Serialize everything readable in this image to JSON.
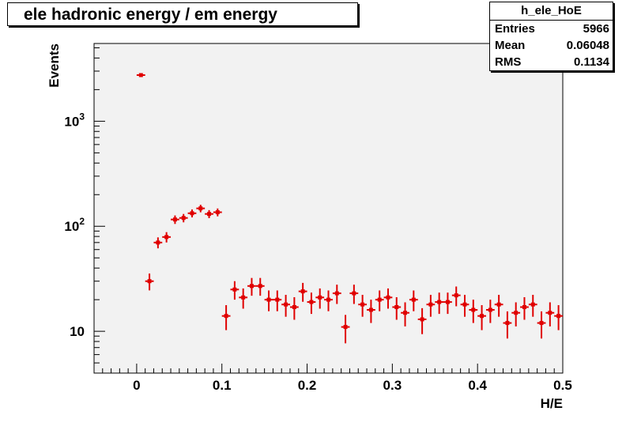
{
  "chart_data": {
    "type": "scatter",
    "title": "ele hadronic energy / em energy",
    "xlabel": "H/E",
    "ylabel": "Events",
    "xlim": [
      -0.05,
      0.5
    ],
    "ylim": [
      4,
      5500
    ],
    "y_scale": "log",
    "grid": false,
    "x_ticks": [
      "0",
      "0.1",
      "0.2",
      "0.3",
      "0.4",
      "0.5"
    ],
    "y_ticks": [
      "10",
      "10^2",
      "10^3"
    ],
    "marker_color": "#e00000",
    "bin_width": 0.01,
    "series": [
      {
        "x": [
          0.005,
          0.015,
          0.025,
          0.035,
          0.045,
          0.055,
          0.065,
          0.075,
          0.085,
          0.095,
          0.105,
          0.115,
          0.125,
          0.135,
          0.145,
          0.155,
          0.165,
          0.175,
          0.185,
          0.195,
          0.205,
          0.215,
          0.225,
          0.235,
          0.245,
          0.255,
          0.265,
          0.275,
          0.285,
          0.295,
          0.305,
          0.315,
          0.325,
          0.335,
          0.345,
          0.355,
          0.365,
          0.375,
          0.385,
          0.395,
          0.405,
          0.415,
          0.425,
          0.435,
          0.445,
          0.455,
          0.465,
          0.475,
          0.485,
          0.495
        ],
        "y": [
          2750,
          30,
          70,
          79,
          116,
          120,
          133,
          148,
          131,
          136,
          14,
          25,
          21,
          27,
          27,
          20,
          20,
          18,
          17,
          24,
          19,
          21,
          20,
          23,
          11,
          23,
          18,
          16,
          20,
          21,
          17,
          15,
          20,
          13,
          18,
          19,
          19,
          22,
          18,
          16,
          14,
          16,
          18,
          12,
          15,
          17,
          18,
          12,
          15,
          14
        ]
      }
    ]
  },
  "stats": {
    "name": "h_ele_HoE",
    "rows": [
      {
        "label": "Entries",
        "value": "5966"
      },
      {
        "label": "Mean",
        "value": "0.06048"
      },
      {
        "label": "RMS",
        "value": "0.1134"
      }
    ]
  }
}
